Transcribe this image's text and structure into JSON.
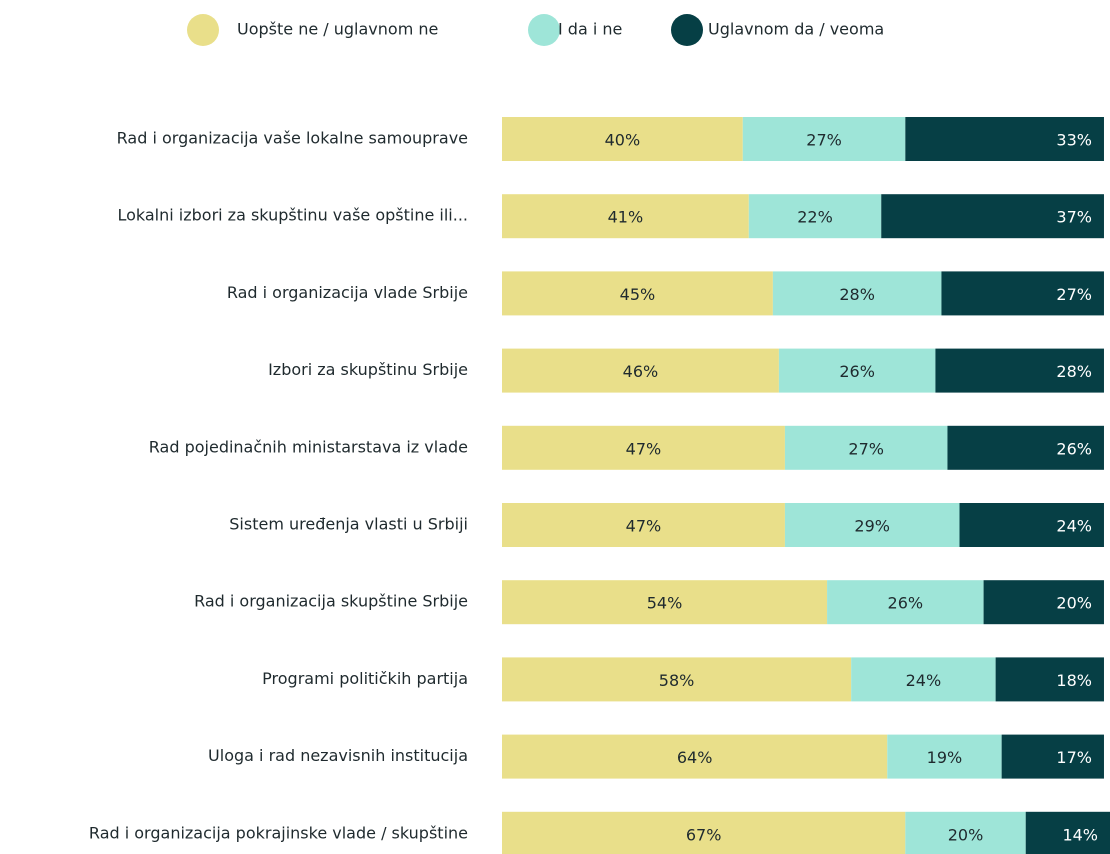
{
  "chart_data": {
    "type": "stacked-barh",
    "categories": [
      "Rad i organizacija vaše lokalne samouprave",
      "Lokalni izbori za skupštinu vaše opštine ili...",
      "Rad i organizacija vlade Srbije",
      "Izbori za skupštinu Srbije",
      "Rad pojedinačnih ministarstava iz vlade",
      "Sistem uređenja vlasti u Srbiji",
      "Rad i organizacija skupštine Srbije",
      "Programi političkih partija",
      "Uloga i rad nezavisnih institucija",
      "Rad i organizacija pokrajinske vlade / skupštine"
    ],
    "series": [
      {
        "name": "Uopšte ne / uglavnom ne",
        "color": "#e9df8a",
        "values": [
          40,
          41,
          45,
          46,
          47,
          47,
          54,
          58,
          64,
          67
        ],
        "value_labels": [
          "40%",
          "41%",
          "45%",
          "46%",
          "47%",
          "47%",
          "54%",
          "58%",
          "64%",
          "67%"
        ]
      },
      {
        "name": "I da i ne",
        "color": "#9ee5d8",
        "values": [
          27,
          22,
          28,
          26,
          27,
          29,
          26,
          24,
          19,
          20
        ],
        "value_labels": [
          "27%",
          "22%",
          "28%",
          "26%",
          "27%",
          "29%",
          "26%",
          "24%",
          "19%",
          "20%"
        ]
      },
      {
        "name": "Uglavnom da / veoma",
        "color": "#063f45",
        "values": [
          33,
          37,
          27,
          28,
          26,
          24,
          20,
          18,
          17,
          14
        ],
        "value_labels": [
          "33%",
          "37%",
          "27%",
          "28%",
          "26%",
          "24%",
          "20%",
          "18%",
          "17%",
          "14%"
        ]
      }
    ],
    "xlim": [
      0,
      101
    ],
    "legend": "top"
  }
}
